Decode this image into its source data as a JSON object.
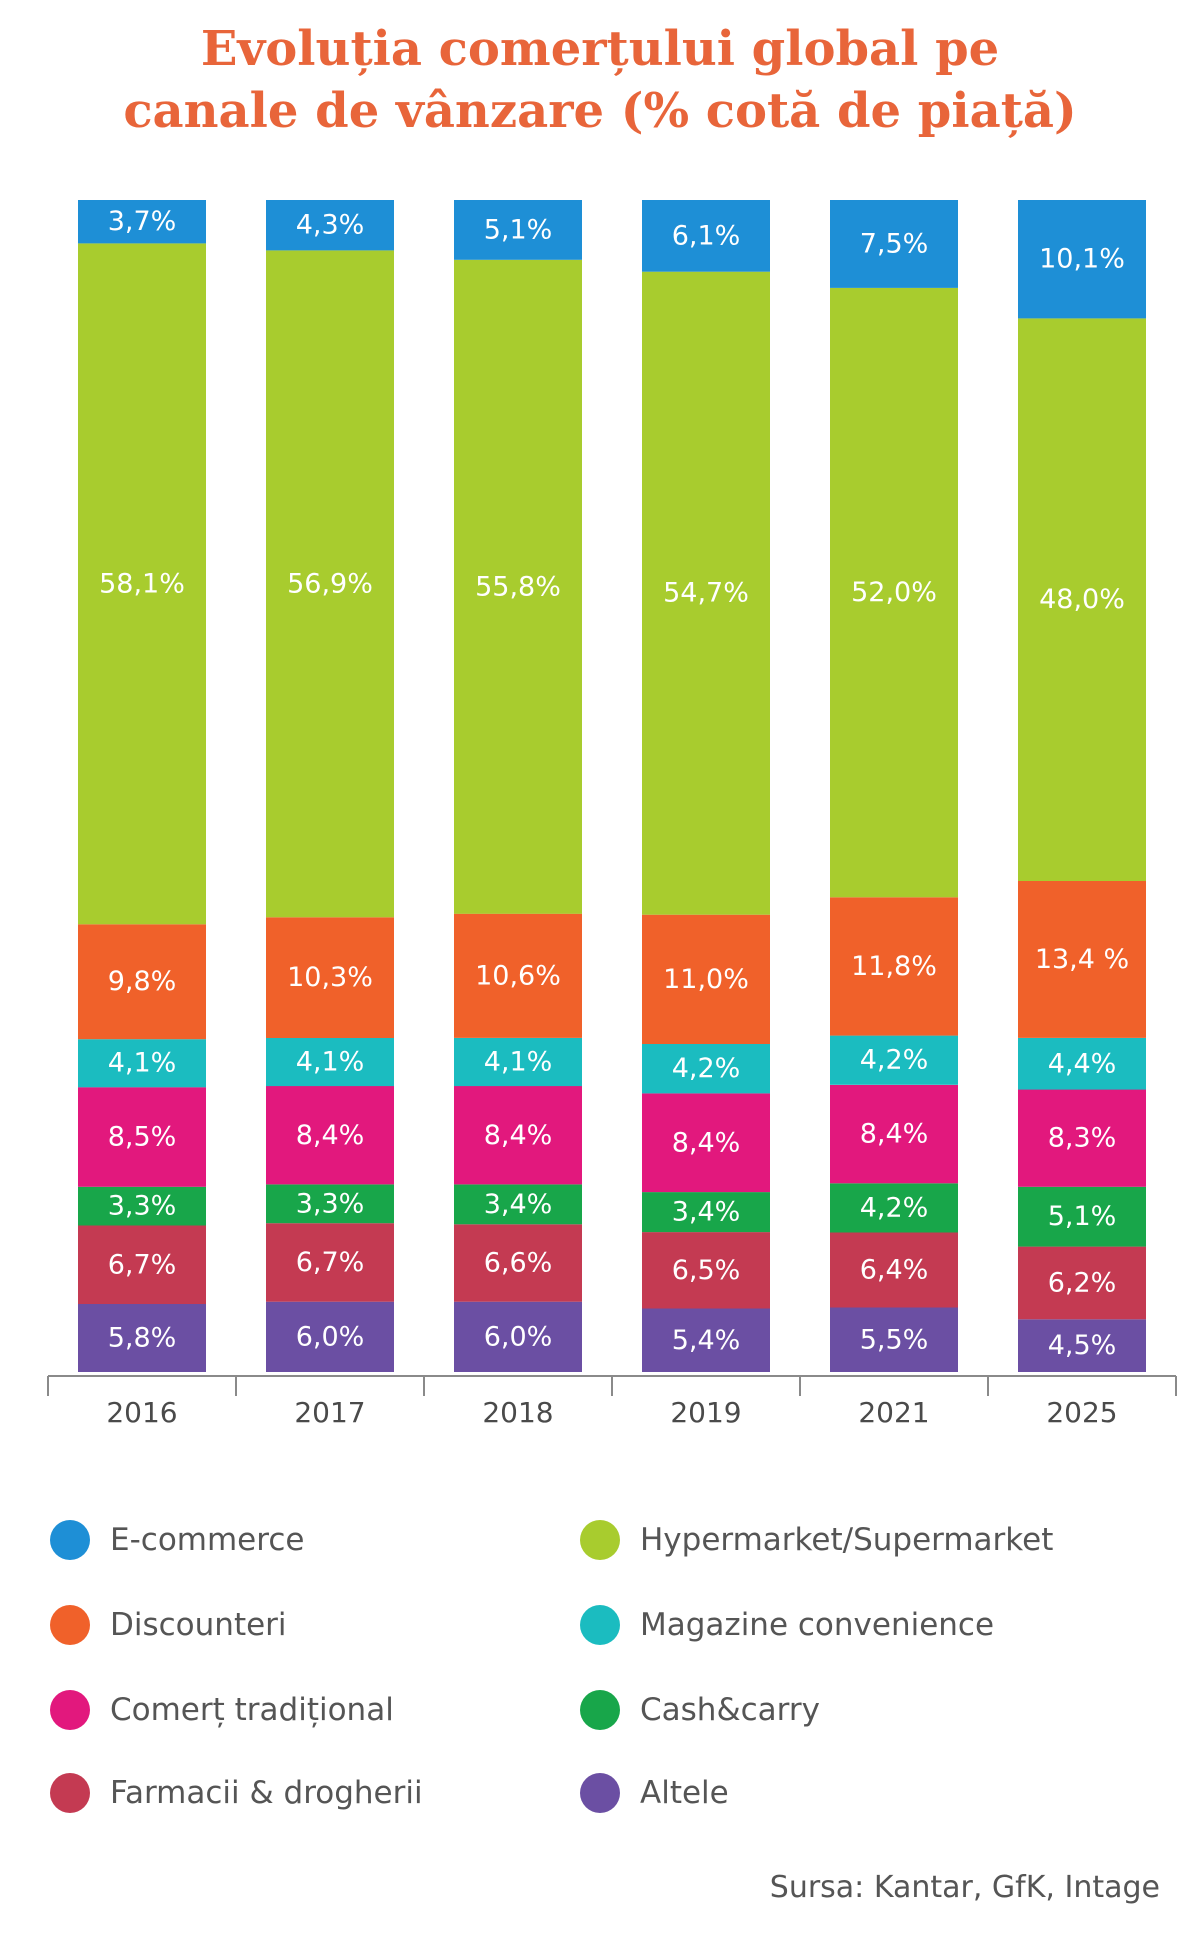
{
  "title_line1": "Evoluția comerțului global pe",
  "title_line2": "canale de vânzare (% cotă de piață)",
  "source": "Sursa: Kantar, GfK, Intage",
  "chart_data": {
    "type": "bar",
    "stacked": true,
    "categories": [
      "2016",
      "2017",
      "2018",
      "2019",
      "2021",
      "2025"
    ],
    "ylim": [
      0,
      100
    ],
    "legend_position": "bottom",
    "series": [
      {
        "name": "Altele",
        "color": "#6b4fa3",
        "values": [
          5.8,
          6.0,
          6.0,
          5.4,
          5.5,
          4.5
        ],
        "labels": [
          "5,8%",
          "6,0%",
          "6,0%",
          "5,4%",
          "5,5%",
          "4,5%"
        ]
      },
      {
        "name": "Farmacii & drogherii",
        "color": "#c43a52",
        "values": [
          6.7,
          6.7,
          6.6,
          6.5,
          6.4,
          6.2
        ],
        "labels": [
          "6,7%",
          "6,7%",
          "6,6%",
          "6,5%",
          "6,4%",
          "6,2%"
        ]
      },
      {
        "name": "Cash&carry",
        "color": "#18a64a",
        "values": [
          3.3,
          3.3,
          3.4,
          3.4,
          4.2,
          5.1
        ],
        "labels": [
          "3,3%",
          "3,3%",
          "3,4%",
          "3,4%",
          "4,2%",
          "5,1%"
        ]
      },
      {
        "name": "Comerț tradițional",
        "color": "#e2187d",
        "values": [
          8.5,
          8.4,
          8.4,
          8.4,
          8.4,
          8.3
        ],
        "labels": [
          "8,5%",
          "8,4%",
          "8,4%",
          "8,4%",
          "8,4%",
          "8,3%"
        ]
      },
      {
        "name": "Magazine convenience",
        "color": "#1bbcc0",
        "values": [
          4.1,
          4.1,
          4.1,
          4.2,
          4.2,
          4.4
        ],
        "labels": [
          "4,1%",
          "4,1%",
          "4,1%",
          "4,2%",
          "4,2%",
          "4,4%"
        ]
      },
      {
        "name": "Discounteri",
        "color": "#f0612a",
        "values": [
          9.8,
          10.3,
          10.6,
          11.0,
          11.8,
          13.4
        ],
        "labels": [
          "9,8%",
          "10,3%",
          "10,6%",
          "11,0%",
          "11,8%",
          "13,4 %"
        ]
      },
      {
        "name": "Hypermarket/Supermarket",
        "color": "#a8cc2e",
        "values": [
          58.1,
          56.9,
          55.8,
          54.7,
          52.0,
          48.0
        ],
        "labels": [
          "58,1%",
          "56,9%",
          "55,8%",
          "54,7%",
          "52,0%",
          "48,0%"
        ]
      },
      {
        "name": "E-commerce",
        "color": "#1e8fd6",
        "values": [
          3.7,
          4.3,
          5.1,
          6.1,
          7.5,
          10.1
        ],
        "labels": [
          "3,7%",
          "4,3%",
          "5,1%",
          "6,1%",
          "7,5%",
          "10,1%"
        ]
      }
    ]
  },
  "legend": [
    {
      "label": "E-commerce",
      "color": "#1e8fd6"
    },
    {
      "label": "Hypermarket/Supermarket",
      "color": "#a8cc2e"
    },
    {
      "label": "Discounteri",
      "color": "#f0612a"
    },
    {
      "label": "Magazine convenience",
      "color": "#1bbcc0"
    },
    {
      "label": "Comerț tradițional",
      "color": "#e2187d"
    },
    {
      "label": "Cash&carry",
      "color": "#18a64a"
    },
    {
      "label": "Farmacii & drogherii",
      "color": "#c43a52"
    },
    {
      "label": "Altele",
      "color": "#6b4fa3"
    }
  ]
}
